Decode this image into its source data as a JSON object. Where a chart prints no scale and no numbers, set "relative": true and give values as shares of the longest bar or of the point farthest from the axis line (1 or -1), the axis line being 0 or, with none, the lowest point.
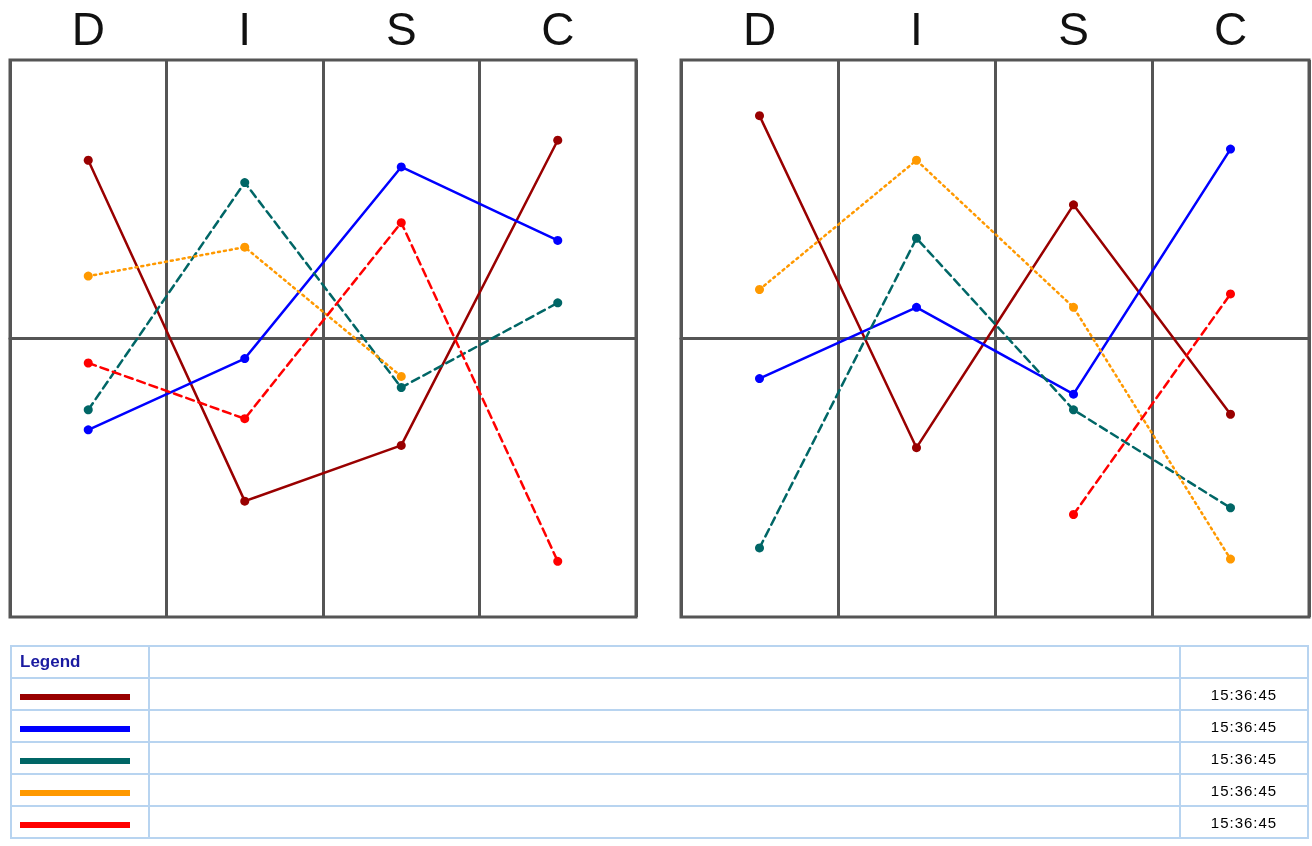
{
  "chart_data": [
    {
      "type": "line",
      "categories": [
        "D",
        "I",
        "S",
        "C"
      ],
      "relative": true,
      "grid": "x",
      "marker": "circle",
      "legend_title": "Legend",
      "annotations": [
        "15:36:45",
        "15:36:45",
        "15:36:45",
        "15:36:45",
        "15:36:45"
      ],
      "series": [
        {
          "color": "#990000",
          "line_style": "solid",
          "values": [
            0.8,
            -0.73,
            -0.48,
            0.89
          ]
        },
        {
          "color": "#0000ff",
          "line_style": "solid",
          "values": [
            -0.41,
            -0.09,
            0.77,
            0.44
          ]
        },
        {
          "color": "#006666",
          "line_style": "dashed",
          "values": [
            -0.32,
            0.7,
            -0.22,
            0.16
          ]
        },
        {
          "color": "#ff9900",
          "line_style": "dotted",
          "values": [
            0.28,
            0.41,
            -0.17,
            null
          ]
        },
        {
          "color": "#ff0000",
          "line_style": "dashed",
          "values": [
            -0.11,
            -0.36,
            0.52,
            -1
          ]
        }
      ]
    },
    {
      "type": "line",
      "categories": [
        "D",
        "I",
        "S",
        "C"
      ],
      "relative": true,
      "grid": "x",
      "marker": "circle",
      "series": [
        {
          "color": "#990000",
          "line_style": "solid",
          "values": [
            1,
            -0.49,
            0.6,
            -0.34
          ]
        },
        {
          "color": "#0000ff",
          "line_style": "solid",
          "values": [
            -0.18,
            0.14,
            -0.25,
            0.85
          ]
        },
        {
          "color": "#006666",
          "line_style": "dashed",
          "values": [
            -0.94,
            0.45,
            -0.32,
            -0.76
          ]
        },
        {
          "color": "#ff9900",
          "line_style": "dotted",
          "values": [
            0.22,
            0.8,
            0.14,
            -0.99
          ]
        },
        {
          "color": "#ff0000",
          "line_style": "dashed",
          "values": [
            null,
            null,
            -0.79,
            0.2
          ]
        }
      ]
    }
  ]
}
